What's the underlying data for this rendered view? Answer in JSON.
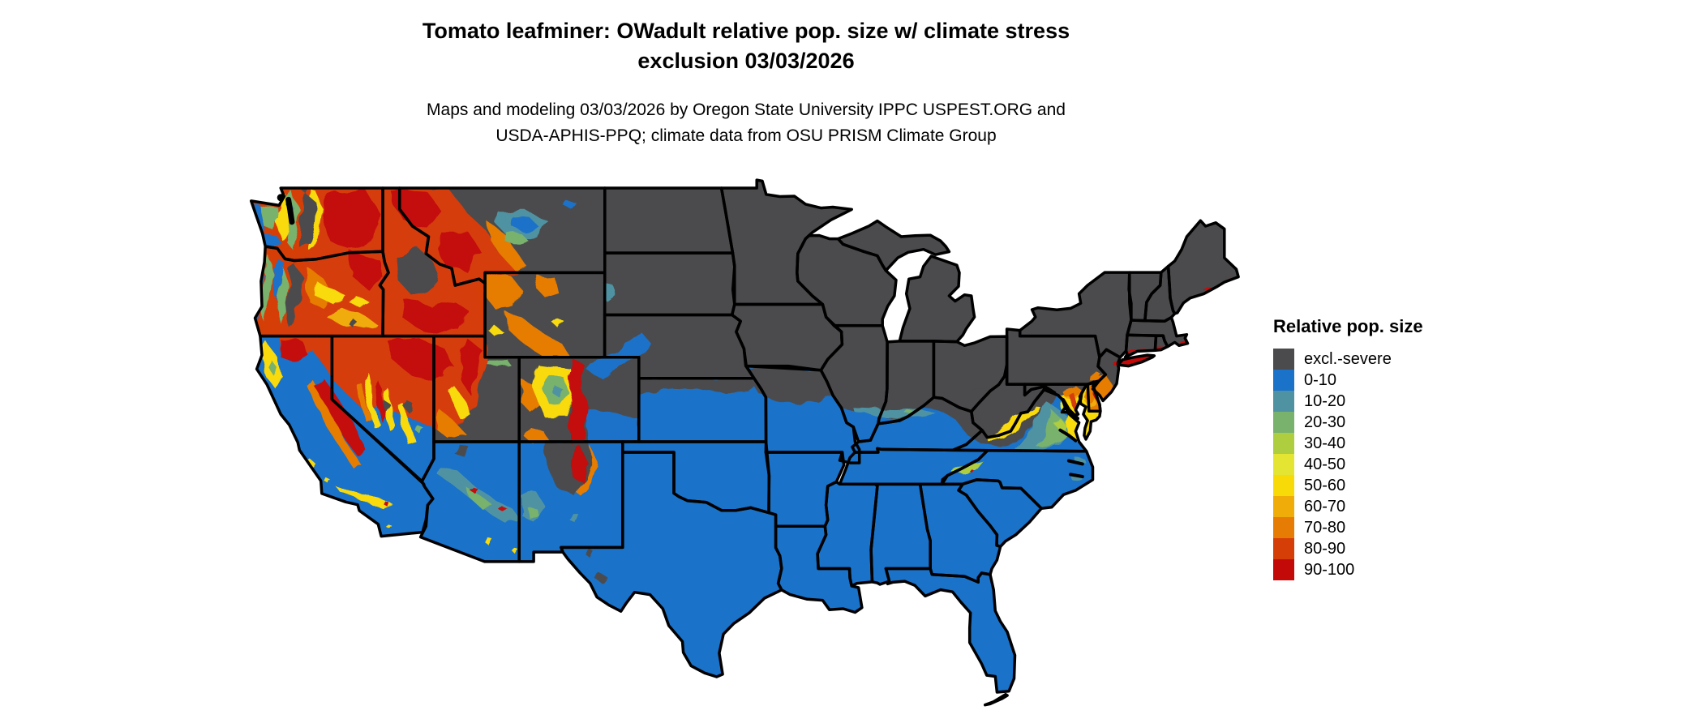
{
  "title": {
    "line1": "Tomato leafminer: OWadult relative pop. size w/ climate stress",
    "line2": "exclusion 03/03/2026"
  },
  "subtitle": {
    "line1": "Maps and modeling 03/03/2026 by Oregon State University IPPC USPEST.ORG and",
    "line2": "USDA-APHIS-PPQ; climate data from OSU PRISM Climate Group"
  },
  "legend": {
    "title": "Relative pop. size",
    "items": [
      {
        "label": "excl.-severe",
        "color": "#4b4b4d"
      },
      {
        "label": "0-10",
        "color": "#1a72c9"
      },
      {
        "label": "10-20",
        "color": "#4f93a2"
      },
      {
        "label": "20-30",
        "color": "#78b26d"
      },
      {
        "label": "30-40",
        "color": "#aecd3f"
      },
      {
        "label": "40-50",
        "color": "#e3e532"
      },
      {
        "label": "50-60",
        "color": "#f8da09"
      },
      {
        "label": "60-70",
        "color": "#f0ac08"
      },
      {
        "label": "70-80",
        "color": "#e67c04"
      },
      {
        "label": "80-90",
        "color": "#d63e08"
      },
      {
        "label": "90-100",
        "color": "#c40909"
      }
    ]
  },
  "map": {
    "region": "Contiguous United States",
    "kind": "categorical raster map with state borders"
  }
}
